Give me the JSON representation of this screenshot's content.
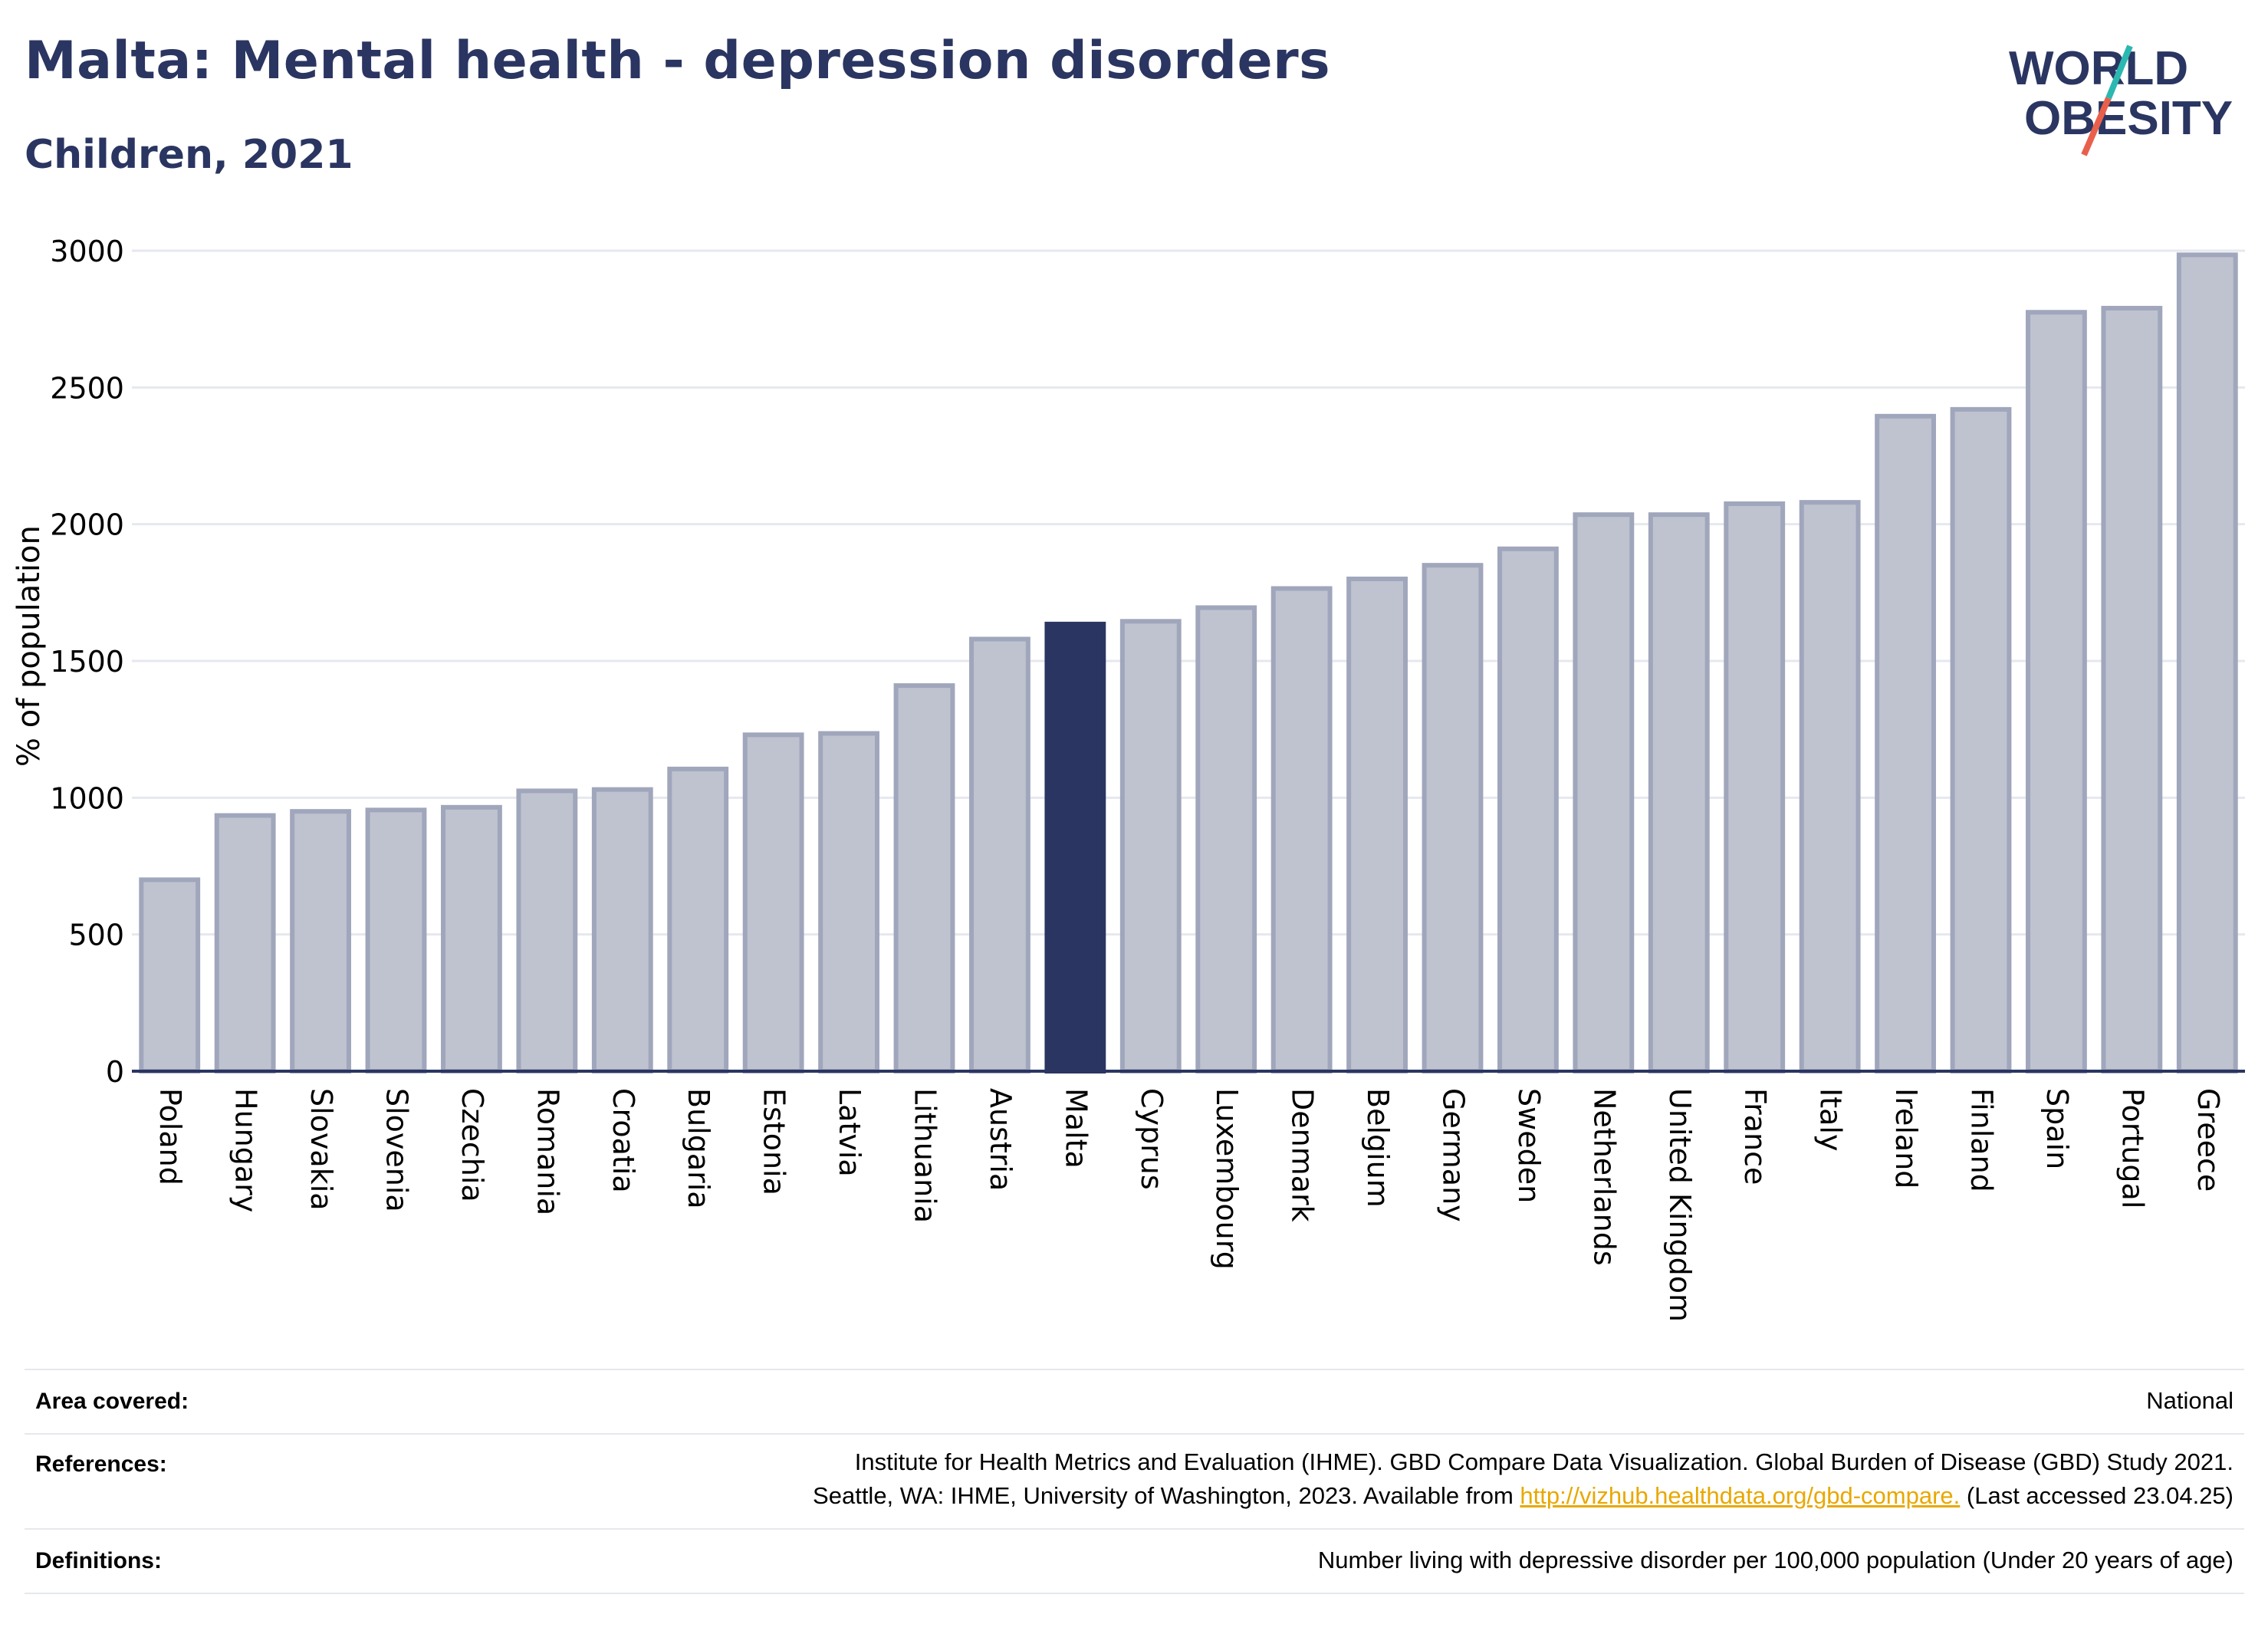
{
  "header": {
    "title": "Malta: Mental health - depression disorders",
    "subtitle": "Children, 2021"
  },
  "logo": {
    "line1": "WORLD",
    "line2": "OBESITY"
  },
  "chart_data": {
    "type": "bar",
    "ylabel": "% of population",
    "ylim": [
      0,
      3000
    ],
    "yticks": [
      0,
      500,
      1000,
      1500,
      2000,
      2500,
      3000
    ],
    "grid": true,
    "highlight": "Malta",
    "categories": [
      "Poland",
      "Hungary",
      "Slovakia",
      "Slovenia",
      "Czechia",
      "Romania",
      "Croatia",
      "Bulgaria",
      "Estonia",
      "Latvia",
      "Lithuania",
      "Austria",
      "Malta",
      "Cyprus",
      "Luxembourg",
      "Denmark",
      "Belgium",
      "Germany",
      "Sweden",
      "Netherlands",
      "United Kingdom",
      "France",
      "Italy",
      "Ireland",
      "Finland",
      "Spain",
      "Portugal",
      "Greece"
    ],
    "values": [
      700,
      935,
      950,
      955,
      965,
      1025,
      1030,
      1105,
      1230,
      1235,
      1410,
      1580,
      1635,
      1645,
      1695,
      1765,
      1800,
      1850,
      1910,
      2035,
      2035,
      2075,
      2080,
      2395,
      2420,
      2775,
      2790,
      2985
    ],
    "colors": {
      "bar": "#bfc3d0",
      "bar_edge": "#a0a6bb",
      "highlight": "#2a3561",
      "axis": "#2a3561",
      "grid": "#e6e8ef"
    }
  },
  "info": {
    "area_label": "Area covered:",
    "area_value": "National",
    "references_label": "References:",
    "references_line1": "Institute for Health Metrics and Evaluation (IHME). GBD Compare Data Visualization. Global Burden of Disease (GBD) Study 2021.",
    "references_line2_pre": "Seattle, WA: IHME, University of Washington, 2023. Available from ",
    "references_link": "http://vizhub.healthdata.org/gbd-compare.",
    "references_line2_post": " (Last accessed 23.04.25)",
    "definitions_label": "Definitions:",
    "definitions_value": "Number living with depressive disorder per 100,000 population (Under 20 years of age)"
  }
}
